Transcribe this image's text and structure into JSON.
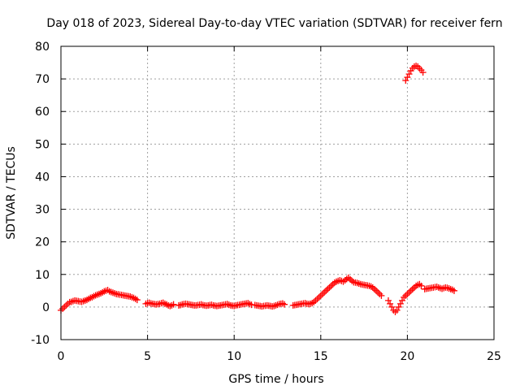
{
  "chart_data": {
    "type": "scatter",
    "title": "Day 018 of 2023, Sidereal Day-to-day VTEC variation (SDTVAR) for receiver fern",
    "xlabel": "GPS time / hours",
    "ylabel": "SDTVAR / TECUs",
    "xlim": [
      0,
      25
    ],
    "ylim": [
      -10,
      80
    ],
    "x_ticks": [
      0,
      5,
      10,
      15,
      20,
      25
    ],
    "y_ticks": [
      -10,
      0,
      10,
      20,
      30,
      40,
      50,
      60,
      70,
      80
    ],
    "grid": true,
    "marker": "plus",
    "color": "#ff0000",
    "series": [
      {
        "name": "SDTVAR",
        "x": [
          0.0,
          0.1,
          0.2,
          0.3,
          0.4,
          0.5,
          0.6,
          0.7,
          0.8,
          0.9,
          1.0,
          1.1,
          1.2,
          1.3,
          1.4,
          1.5,
          1.6,
          1.7,
          1.8,
          1.9,
          2.0,
          2.1,
          2.2,
          2.3,
          2.4,
          2.5,
          2.6,
          2.7,
          2.8,
          2.9,
          3.0,
          3.1,
          3.2,
          3.3,
          3.4,
          3.5,
          3.6,
          3.7,
          3.8,
          3.9,
          4.0,
          4.1,
          4.2,
          4.3,
          4.4,
          4.9,
          5.0,
          5.1,
          5.2,
          5.3,
          5.4,
          5.5,
          5.6,
          5.7,
          5.8,
          5.9,
          6.0,
          6.1,
          6.2,
          6.3,
          6.4,
          6.5,
          6.8,
          6.9,
          7.0,
          7.1,
          7.2,
          7.3,
          7.4,
          7.5,
          7.6,
          7.7,
          7.8,
          7.9,
          8.0,
          8.1,
          8.2,
          8.3,
          8.4,
          8.5,
          8.6,
          8.7,
          8.8,
          8.9,
          9.0,
          9.1,
          9.2,
          9.3,
          9.4,
          9.5,
          9.6,
          9.7,
          9.8,
          9.9,
          10.0,
          10.1,
          10.2,
          10.3,
          10.4,
          10.5,
          10.6,
          10.7,
          10.8,
          10.9,
          11.0,
          11.2,
          11.3,
          11.4,
          11.5,
          11.6,
          11.7,
          11.8,
          11.9,
          12.0,
          12.1,
          12.2,
          12.3,
          12.4,
          12.5,
          12.6,
          12.7,
          12.8,
          12.9,
          13.4,
          13.5,
          13.6,
          13.7,
          13.8,
          13.9,
          14.0,
          14.1,
          14.2,
          14.3,
          14.4,
          14.5,
          14.6,
          14.7,
          14.8,
          14.9,
          15.0,
          15.1,
          15.2,
          15.3,
          15.4,
          15.5,
          15.6,
          15.7,
          15.8,
          15.9,
          16.0,
          16.1,
          16.2,
          16.3,
          16.4,
          16.5,
          16.6,
          16.7,
          16.8,
          16.9,
          17.0,
          17.1,
          17.2,
          17.3,
          17.4,
          17.5,
          17.6,
          17.7,
          17.8,
          17.9,
          18.0,
          18.1,
          18.2,
          18.3,
          18.4,
          18.5,
          18.9,
          19.0,
          19.1,
          19.2,
          19.3,
          19.4,
          19.5,
          19.6,
          19.7,
          19.8,
          19.9,
          20.0,
          20.1,
          20.2,
          20.3,
          20.4,
          20.5,
          20.6,
          20.7,
          20.8,
          21.0,
          21.1,
          21.2,
          21.3,
          21.4,
          21.5,
          21.6,
          21.7,
          21.8,
          21.9,
          22.0,
          22.1,
          22.2,
          22.3,
          22.4,
          22.5,
          22.6,
          22.7,
          19.9,
          20.0,
          20.1,
          20.2,
          20.3,
          20.4,
          20.5,
          20.6,
          20.7,
          20.8,
          20.9
        ],
        "y": [
          -1.0,
          -0.5,
          0.0,
          0.5,
          1.0,
          1.5,
          1.6,
          1.8,
          2.0,
          1.9,
          1.8,
          1.7,
          1.6,
          1.8,
          2.0,
          2.2,
          2.5,
          2.8,
          3.0,
          3.3,
          3.6,
          3.8,
          4.0,
          4.2,
          4.5,
          4.8,
          5.0,
          5.2,
          4.8,
          4.6,
          4.4,
          4.2,
          4.0,
          3.9,
          3.8,
          3.7,
          3.6,
          3.5,
          3.4,
          3.3,
          3.2,
          3.0,
          2.8,
          2.5,
          2.2,
          1.0,
          1.2,
          1.3,
          1.1,
          1.0,
          0.9,
          0.8,
          0.9,
          1.0,
          1.2,
          1.3,
          1.0,
          0.8,
          0.5,
          0.3,
          0.5,
          0.8,
          0.5,
          0.6,
          0.8,
          0.9,
          1.0,
          0.9,
          0.8,
          0.7,
          0.6,
          0.5,
          0.5,
          0.6,
          0.7,
          0.8,
          0.6,
          0.5,
          0.4,
          0.5,
          0.6,
          0.7,
          0.5,
          0.4,
          0.3,
          0.4,
          0.5,
          0.6,
          0.7,
          0.8,
          0.9,
          0.7,
          0.5,
          0.4,
          0.3,
          0.5,
          0.6,
          0.7,
          0.8,
          0.9,
          1.0,
          1.1,
          1.2,
          0.9,
          0.7,
          0.6,
          0.5,
          0.4,
          0.3,
          0.2,
          0.3,
          0.4,
          0.5,
          0.4,
          0.3,
          0.2,
          0.3,
          0.5,
          0.7,
          0.9,
          1.0,
          1.1,
          0.8,
          0.5,
          0.6,
          0.7,
          0.8,
          0.9,
          1.0,
          1.1,
          1.2,
          1.0,
          0.9,
          1.0,
          1.2,
          1.5,
          2.0,
          2.5,
          3.0,
          3.5,
          4.0,
          4.5,
          5.0,
          5.5,
          6.0,
          6.5,
          7.0,
          7.5,
          7.8,
          8.0,
          8.2,
          8.0,
          7.8,
          8.2,
          8.6,
          9.0,
          8.5,
          8.0,
          7.6,
          7.5,
          7.4,
          7.2,
          7.0,
          6.9,
          6.8,
          6.7,
          6.6,
          6.5,
          6.3,
          6.0,
          5.5,
          5.0,
          4.5,
          4.0,
          3.5,
          2.0,
          1.0,
          0.0,
          -1.0,
          -1.5,
          -1.0,
          0.0,
          1.0,
          2.0,
          3.0,
          3.5,
          4.0,
          4.5,
          5.0,
          5.5,
          6.0,
          6.5,
          6.8,
          7.0,
          6.5,
          5.5,
          5.6,
          5.7,
          5.8,
          5.9,
          6.0,
          6.1,
          6.2,
          6.0,
          5.8,
          5.6,
          5.8,
          6.0,
          5.9,
          5.7,
          5.5,
          5.3,
          5.0,
          69.5,
          70.5,
          71.5,
          72.5,
          73.3,
          73.8,
          74.0,
          73.8,
          73.2,
          72.7,
          72.0
        ]
      }
    ]
  }
}
